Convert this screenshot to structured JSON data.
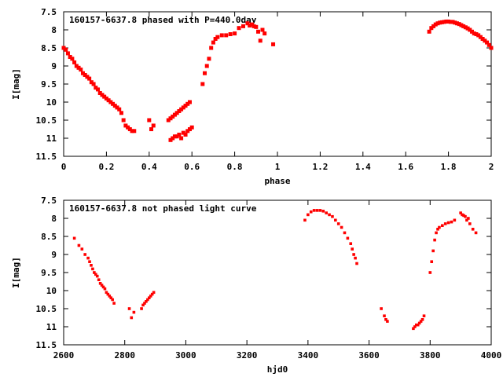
{
  "chart_data": [
    {
      "type": "scatter",
      "title": "160157-6637.8 phased with P=440.0day",
      "xlabel": "phase",
      "ylabel": "I[mag]",
      "xlim": [
        0,
        2
      ],
      "ylim": [
        7.5,
        11.5
      ],
      "y_inverted": true,
      "x_ticks": [
        0,
        0.2,
        0.4,
        0.6,
        0.8,
        1,
        1.2,
        1.4,
        1.6,
        1.8,
        2
      ],
      "x_tick_labels": [
        "0",
        "0.2",
        "0.4",
        "0.6",
        "0.8",
        "1",
        "1.2",
        "1.4",
        "1.6",
        "1.8",
        "2"
      ],
      "y_ticks": [
        7.5,
        8,
        8.5,
        9,
        9.5,
        10,
        10.5,
        11,
        11.5
      ],
      "y_tick_labels": [
        "7.5",
        "8",
        "8.5",
        "9",
        "9.5",
        "10",
        "10.5",
        "11",
        "11.5"
      ],
      "grid": false,
      "marker_color": "#ff0000",
      "series": [
        {
          "x": [
            0.0,
            0.01,
            0.02,
            0.03,
            0.04,
            0.05,
            0.06,
            0.07,
            0.08,
            0.09,
            0.1,
            0.11,
            0.12,
            0.13,
            0.14,
            0.15,
            0.16,
            0.17,
            0.18,
            0.19,
            0.2,
            0.21,
            0.22,
            0.23,
            0.24,
            0.25,
            0.26,
            0.27,
            0.28,
            0.29,
            0.3,
            0.31,
            0.32,
            0.33,
            0.4,
            0.41,
            0.42,
            0.49,
            0.5,
            0.51,
            0.52,
            0.53,
            0.54,
            0.55,
            0.56,
            0.57,
            0.58,
            0.59,
            0.5,
            0.51,
            0.52,
            0.53,
            0.54,
            0.55,
            0.56,
            0.57,
            0.58,
            0.59,
            0.6,
            0.65,
            0.66,
            0.67,
            0.68,
            0.69,
            0.7,
            0.71,
            0.72,
            0.74,
            0.76,
            0.78,
            0.8,
            0.82,
            0.84,
            0.86,
            0.87,
            0.88,
            0.89,
            0.9,
            0.91,
            0.92,
            0.93,
            0.94,
            0.98,
            1.71,
            1.72,
            1.73,
            1.74,
            1.75,
            1.76,
            1.77,
            1.78,
            1.79,
            1.8,
            1.81,
            1.82,
            1.83,
            1.84,
            1.85,
            1.86,
            1.87,
            1.88,
            1.89,
            1.9,
            1.91,
            1.92,
            1.93,
            1.94,
            1.95,
            1.96,
            1.97,
            1.98,
            1.99,
            2.0
          ],
          "y": [
            8.5,
            8.55,
            8.65,
            8.75,
            8.8,
            8.9,
            9.0,
            9.05,
            9.1,
            9.2,
            9.25,
            9.3,
            9.35,
            9.45,
            9.5,
            9.6,
            9.65,
            9.75,
            9.8,
            9.85,
            9.9,
            9.95,
            10.0,
            10.05,
            10.1,
            10.15,
            10.2,
            10.3,
            10.5,
            10.65,
            10.7,
            10.75,
            10.8,
            10.8,
            10.5,
            10.75,
            10.65,
            10.5,
            10.45,
            10.4,
            10.35,
            10.3,
            10.25,
            10.2,
            10.15,
            10.1,
            10.05,
            10.0,
            11.05,
            11.0,
            10.95,
            10.95,
            10.9,
            11.0,
            10.85,
            10.9,
            10.8,
            10.75,
            10.7,
            9.5,
            9.2,
            9.0,
            8.8,
            8.5,
            8.35,
            8.25,
            8.2,
            8.15,
            8.15,
            8.12,
            8.1,
            7.95,
            7.9,
            7.82,
            7.88,
            7.85,
            7.9,
            7.92,
            8.05,
            8.3,
            8.0,
            8.1,
            8.4,
            8.05,
            7.95,
            7.9,
            7.85,
            7.82,
            7.8,
            7.79,
            7.78,
            7.77,
            7.77,
            7.78,
            7.78,
            7.8,
            7.82,
            7.84,
            7.87,
            7.9,
            7.93,
            7.96,
            8.0,
            8.05,
            8.1,
            8.12,
            8.15,
            8.2,
            8.25,
            8.3,
            8.35,
            8.42,
            8.5
          ]
        }
      ]
    },
    {
      "type": "scatter",
      "title": "160157-6637.8 not phased light curve",
      "xlabel": "hjd0",
      "ylabel": "I[mag]",
      "xlim": [
        2600,
        4000
      ],
      "ylim": [
        7.5,
        11.5
      ],
      "y_inverted": true,
      "x_ticks": [
        2600,
        2800,
        3000,
        3200,
        3400,
        3600,
        3800,
        4000
      ],
      "x_tick_labels": [
        "2600",
        "2800",
        "3000",
        "3200",
        "3400",
        "3600",
        "3800",
        "4000"
      ],
      "y_ticks": [
        7.5,
        8,
        8.5,
        9,
        9.5,
        10,
        10.5,
        11,
        11.5
      ],
      "y_tick_labels": [
        "7.5",
        "8",
        "8.5",
        "9",
        "9.5",
        "10",
        "10.5",
        "11",
        "11.5"
      ],
      "grid": false,
      "marker_color": "#ff0000",
      "series": [
        {
          "x": [
            2635,
            2650,
            2660,
            2670,
            2680,
            2685,
            2690,
            2695,
            2700,
            2705,
            2710,
            2715,
            2720,
            2725,
            2730,
            2735,
            2740,
            2745,
            2750,
            2755,
            2760,
            2765,
            2815,
            2822,
            2830,
            2855,
            2860,
            2865,
            2870,
            2875,
            2880,
            2885,
            2890,
            2895,
            3390,
            3400,
            3410,
            3420,
            3430,
            3440,
            3450,
            3460,
            3470,
            3480,
            3490,
            3500,
            3510,
            3520,
            3530,
            3540,
            3545,
            3550,
            3555,
            3560,
            3640,
            3650,
            3655,
            3660,
            3745,
            3750,
            3755,
            3760,
            3765,
            3770,
            3775,
            3780,
            3800,
            3805,
            3810,
            3815,
            3820,
            3825,
            3830,
            3840,
            3850,
            3860,
            3870,
            3880,
            3900,
            3905,
            3910,
            3915,
            3920,
            3925,
            3930,
            3940,
            3950
          ],
          "y": [
            8.55,
            8.75,
            8.85,
            9.0,
            9.1,
            9.2,
            9.3,
            9.4,
            9.5,
            9.55,
            9.6,
            9.7,
            9.8,
            9.85,
            9.9,
            9.95,
            10.05,
            10.1,
            10.15,
            10.2,
            10.25,
            10.35,
            10.5,
            10.75,
            10.6,
            10.5,
            10.4,
            10.35,
            10.3,
            10.25,
            10.2,
            10.15,
            10.1,
            10.05,
            8.05,
            7.9,
            7.82,
            7.78,
            7.78,
            7.78,
            7.8,
            7.85,
            7.9,
            7.95,
            8.05,
            8.15,
            8.25,
            8.4,
            8.55,
            8.7,
            8.85,
            9.0,
            9.1,
            9.25,
            10.5,
            10.7,
            10.8,
            10.85,
            11.05,
            11.0,
            10.95,
            10.95,
            10.9,
            10.85,
            10.8,
            10.7,
            9.5,
            9.2,
            8.9,
            8.6,
            8.4,
            8.3,
            8.25,
            8.2,
            8.15,
            8.12,
            8.1,
            8.05,
            7.85,
            7.9,
            7.92,
            7.95,
            8.05,
            8.0,
            8.15,
            8.3,
            8.4
          ]
        }
      ]
    }
  ]
}
